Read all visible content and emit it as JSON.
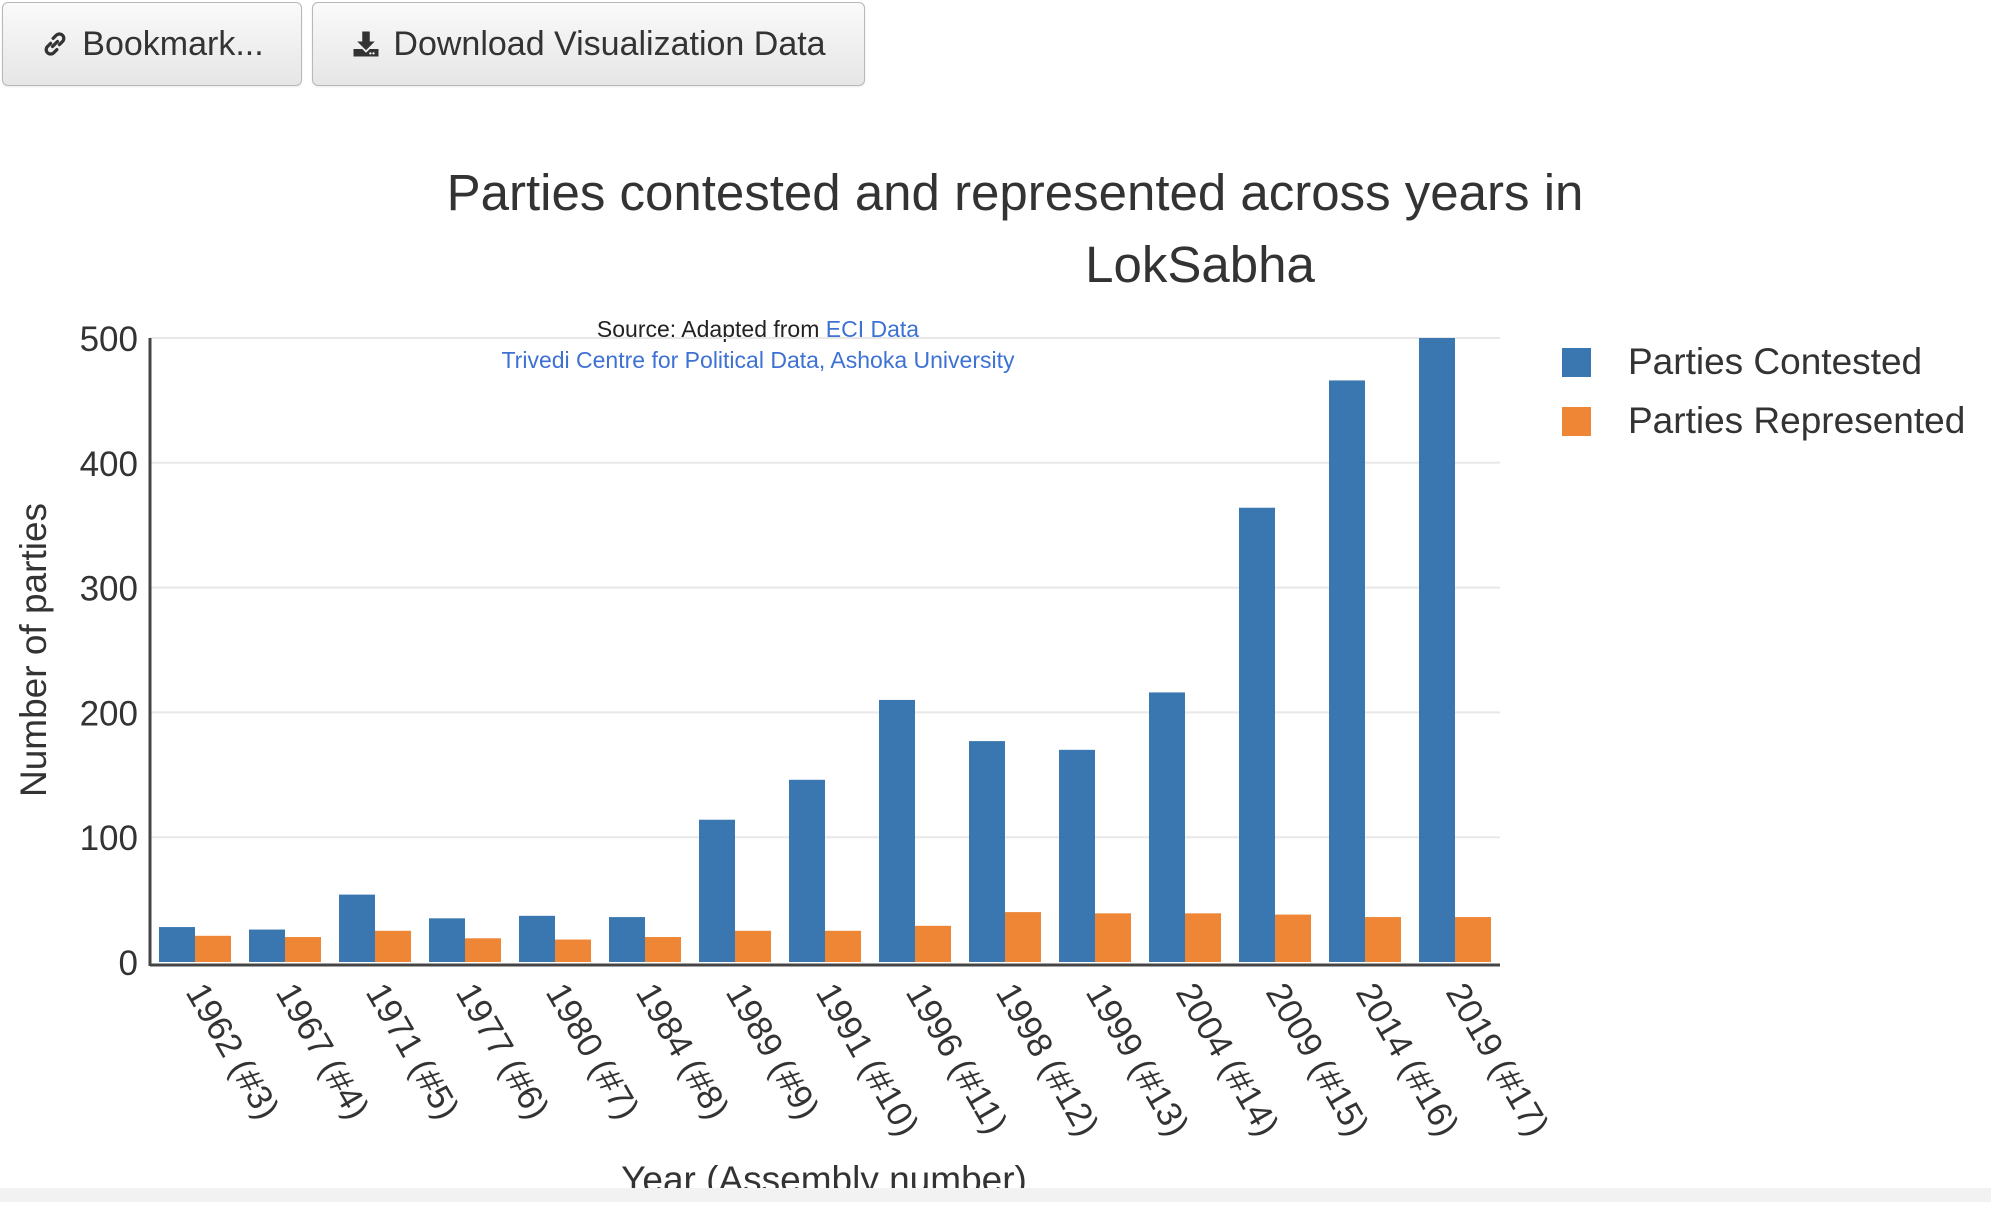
{
  "toolbar": {
    "bookmark_label": "Bookmark...",
    "download_label": "Download Visualization Data",
    "bookmark_icon": "link-icon",
    "download_icon": "download-icon"
  },
  "chart_data": {
    "type": "bar",
    "title_line1": "Parties contested and represented across years in",
    "title_line2": "LokSabha",
    "source_prefix": "Source: Adapted from ",
    "source_link": "ECI Data",
    "credit": "Trivedi Centre for Political Data, Ashoka University",
    "xlabel": "Year (Assembly number)",
    "ylabel": "Number of parties",
    "ylim": [
      0,
      500
    ],
    "yticks": [
      0,
      100,
      200,
      300,
      400,
      500
    ],
    "categories": [
      "1962 (#3)",
      "1967 (#4)",
      "1971 (#5)",
      "1977 (#6)",
      "1980 (#7)",
      "1984 (#8)",
      "1989 (#9)",
      "1991 (#10)",
      "1996 (#11)",
      "1998 (#12)",
      "1999 (#13)",
      "2004 (#14)",
      "2009 (#15)",
      "2014 (#16)",
      "2019 (#17)"
    ],
    "series": [
      {
        "name": "Parties Contested",
        "color": "#3a76af",
        "values": [
          28,
          26,
          54,
          35,
          37,
          36,
          114,
          146,
          210,
          177,
          170,
          216,
          364,
          466,
          500
        ]
      },
      {
        "name": "Parties Represented",
        "color": "#ef8636",
        "values": [
          21,
          20,
          25,
          19,
          18,
          20,
          25,
          25,
          29,
          40,
          39,
          39,
          38,
          36,
          36
        ]
      }
    ],
    "grid": true,
    "legend_position": "right",
    "colors": {
      "text": "#333333",
      "link": "#3d72d4",
      "grid": "#e8e8e8",
      "axis": "#444444"
    }
  }
}
